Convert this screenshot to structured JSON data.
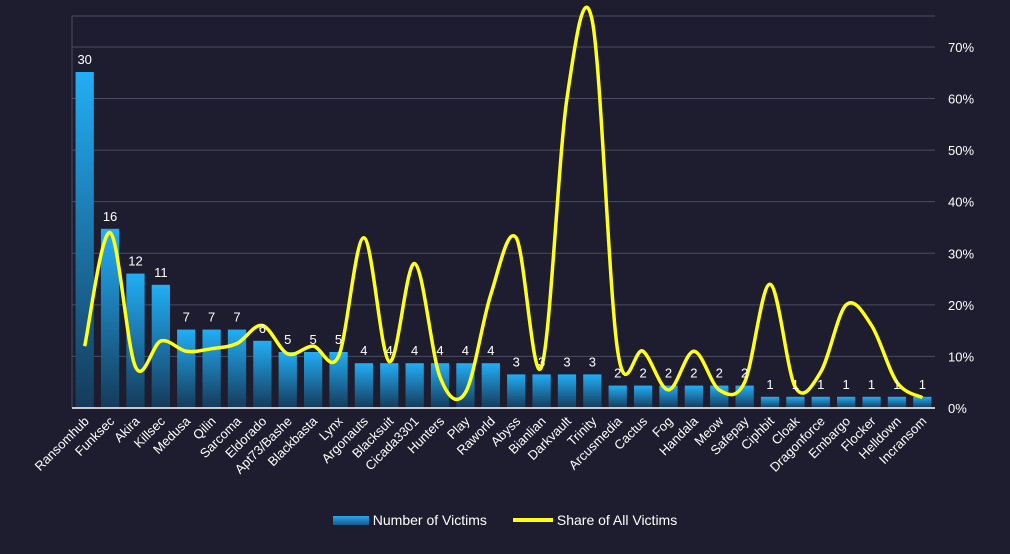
{
  "chart_data": {
    "type": "bar",
    "categories": [
      "Ransomhub",
      "Funksec",
      "Akira",
      "Killsec",
      "Medusa",
      "Qilin",
      "Sarcoma",
      "Eldorado",
      "Apt73/Bashe",
      "Blackbasta",
      "Lynx",
      "Argonauts",
      "Blacksuit",
      "Cicada3301",
      "Hunters",
      "Play",
      "Raworld",
      "Abyss",
      "Bianlian",
      "Darkvault",
      "Trinity",
      "Arcusmedia",
      "Cactus",
      "Fog",
      "Handala",
      "Meow",
      "Safepay",
      "Ciphbit",
      "Cloak",
      "Dragonforce",
      "Embargo",
      "Flocker",
      "Helldown",
      "Incransom"
    ],
    "series": [
      {
        "name": "Number of Victims",
        "type": "bar",
        "axis": "left",
        "color": "#1e9be6",
        "values": [
          30,
          16,
          12,
          11,
          7,
          7,
          7,
          6,
          5,
          5,
          5,
          4,
          4,
          4,
          4,
          4,
          4,
          3,
          3,
          3,
          3,
          2,
          2,
          2,
          2,
          2,
          2,
          1,
          1,
          1,
          1,
          1,
          1,
          1
        ]
      },
      {
        "name": "Share of All Victims",
        "type": "line",
        "axis": "right",
        "color": "#ffff17",
        "values": [
          12,
          34,
          8,
          13,
          11,
          11.5,
          12.5,
          16,
          10.5,
          12,
          10,
          33,
          9,
          28,
          6,
          3,
          22,
          33,
          8,
          60,
          75,
          11,
          11,
          3.5,
          11,
          3.5,
          5,
          24,
          4,
          7,
          20,
          16,
          5,
          2
        ]
      }
    ],
    "y_right_ticks": [
      "0%",
      "10%",
      "20%",
      "30%",
      "40%",
      "50%",
      "60%",
      "70%"
    ],
    "y_right_range": [
      0,
      76
    ],
    "y_left_range": [
      0,
      35
    ],
    "grid": "horizontal",
    "legend_position": "bottom"
  },
  "legend": {
    "bar_label": "Number of Victims",
    "line_label": "Share of All Victims"
  }
}
